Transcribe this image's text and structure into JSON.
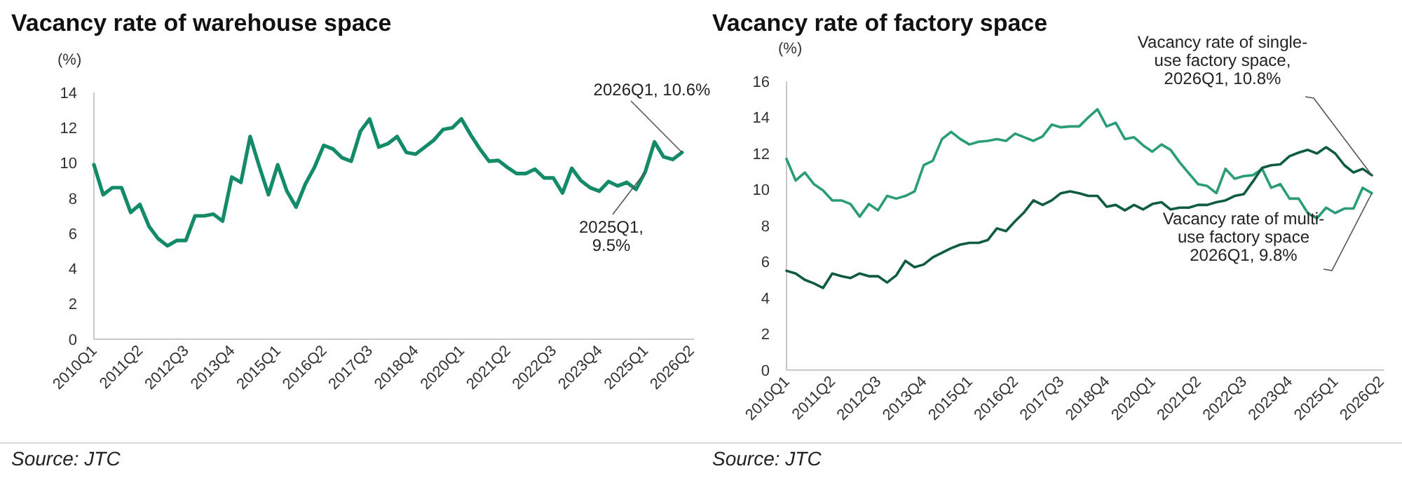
{
  "chart_data": [
    {
      "type": "line",
      "title": "Vacancy rate of warehouse space",
      "ylabel": "(%)",
      "categories": [
        "2010Q1",
        null,
        null,
        null,
        null,
        "2011Q2",
        null,
        null,
        null,
        null,
        "2012Q3",
        null,
        null,
        null,
        null,
        "2013Q4",
        null,
        null,
        null,
        null,
        "2015Q1",
        null,
        null,
        null,
        null,
        "2016Q2",
        null,
        null,
        null,
        null,
        "2017Q3",
        null,
        null,
        null,
        null,
        "2018Q4",
        null,
        null,
        null,
        null,
        "2020Q1",
        null,
        null,
        null,
        null,
        "2021Q2",
        null,
        null,
        null,
        null,
        "2022Q3",
        null,
        null,
        null,
        null,
        "2023Q4",
        null,
        null,
        null,
        null,
        "2025Q1",
        null,
        null,
        null,
        null,
        "2026Q2"
      ],
      "series": [
        {
          "color": "#138a68",
          "values": [
            9.9,
            8.2,
            8.6,
            8.6,
            7.2,
            7.65,
            6.4,
            5.7,
            5.3,
            5.6,
            5.6,
            7.0,
            7.0,
            7.1,
            6.7,
            9.2,
            8.9,
            11.5,
            9.8,
            8.2,
            9.9,
            8.4,
            7.5,
            8.8,
            9.75,
            11.0,
            10.8,
            10.3,
            10.1,
            11.8,
            12.5,
            10.9,
            11.1,
            11.5,
            10.6,
            10.5,
            10.9,
            11.3,
            11.9,
            12.0,
            12.5,
            11.6,
            10.8,
            10.1,
            10.15,
            9.75,
            9.4,
            9.4,
            9.65,
            9.15,
            9.15,
            8.3,
            9.7,
            9.0,
            8.6,
            8.4,
            8.95,
            8.7,
            8.9,
            8.5,
            9.5,
            11.2,
            10.35,
            10.2,
            10.6,
            null
          ]
        }
      ],
      "ylim": [
        0,
        14
      ],
      "yticks": [
        0,
        2,
        4,
        6,
        8,
        10,
        12,
        14
      ],
      "annotations": [
        "2026Q1, 10.6%",
        {
          "text": "2025Q1,\n9.5%",
          "x": "2025Q1",
          "y": 9.5
        },
        "Source: JTC"
      ]
    },
    {
      "type": "line",
      "title": "Vacancy rate of factory space",
      "ylabel": "(%)",
      "categories": [
        "2010Q1",
        null,
        null,
        null,
        null,
        "2011Q2",
        null,
        null,
        null,
        null,
        "2012Q3",
        null,
        null,
        null,
        null,
        "2013Q4",
        null,
        null,
        null,
        null,
        "2015Q1",
        null,
        null,
        null,
        null,
        "2016Q2",
        null,
        null,
        null,
        null,
        "2017Q3",
        null,
        null,
        null,
        null,
        "2018Q4",
        null,
        null,
        null,
        null,
        "2020Q1",
        null,
        null,
        null,
        null,
        "2021Q2",
        null,
        null,
        null,
        null,
        "2022Q3",
        null,
        null,
        null,
        null,
        "2023Q4",
        null,
        null,
        null,
        null,
        "2025Q1",
        null,
        null,
        null,
        null,
        "2026Q2"
      ],
      "series": [
        {
          "color": "#2a9d78",
          "values": [
            11.7,
            10.5,
            10.95,
            10.3,
            9.95,
            9.4,
            9.4,
            9.2,
            8.5,
            9.2,
            8.85,
            9.65,
            9.5,
            9.65,
            9.9,
            11.35,
            11.6,
            12.8,
            13.2,
            12.8,
            12.5,
            12.65,
            12.7,
            12.8,
            12.7,
            13.1,
            12.9,
            12.7,
            12.95,
            13.6,
            13.45,
            13.5,
            13.5,
            14.0,
            14.45,
            13.5,
            13.7,
            12.8,
            12.9,
            12.45,
            12.1,
            12.5,
            12.2,
            11.5,
            10.9,
            10.3,
            10.2,
            9.8,
            11.15,
            10.6,
            10.75,
            10.8,
            11.15,
            10.1,
            10.3,
            9.5,
            9.5,
            8.7,
            8.4,
            9.0,
            8.7,
            8.95,
            8.95,
            10.1,
            9.8,
            null
          ]
        },
        {
          "color": "#0f5c41",
          "values": [
            5.5,
            5.35,
            5.0,
            4.8,
            4.55,
            5.35,
            5.2,
            5.1,
            5.35,
            5.2,
            5.2,
            4.85,
            5.25,
            6.05,
            5.7,
            5.85,
            6.25,
            6.5,
            6.75,
            6.95,
            7.05,
            7.05,
            7.2,
            7.85,
            7.7,
            8.25,
            8.75,
            9.4,
            9.15,
            9.4,
            9.8,
            9.9,
            9.8,
            9.65,
            9.65,
            9.05,
            9.15,
            8.85,
            9.15,
            8.9,
            9.2,
            9.3,
            8.9,
            9.0,
            9.0,
            9.15,
            9.15,
            9.3,
            9.4,
            9.65,
            9.75,
            10.45,
            11.2,
            11.35,
            11.4,
            11.85,
            12.05,
            12.2,
            12.0,
            12.35,
            12.0,
            11.35,
            10.95,
            11.15,
            10.8,
            null
          ]
        }
      ],
      "ylim": [
        0,
        16
      ],
      "yticks": [
        0,
        2,
        4,
        6,
        8,
        10,
        12,
        14,
        16
      ],
      "annotations": [
        "Vacancy rate of single-\nuse factory space,\n2026Q1, 10.8%",
        "Vacancy rate of multi-\nuse factory space\n2026Q1, 9.8%",
        "Source: JTC"
      ]
    }
  ]
}
